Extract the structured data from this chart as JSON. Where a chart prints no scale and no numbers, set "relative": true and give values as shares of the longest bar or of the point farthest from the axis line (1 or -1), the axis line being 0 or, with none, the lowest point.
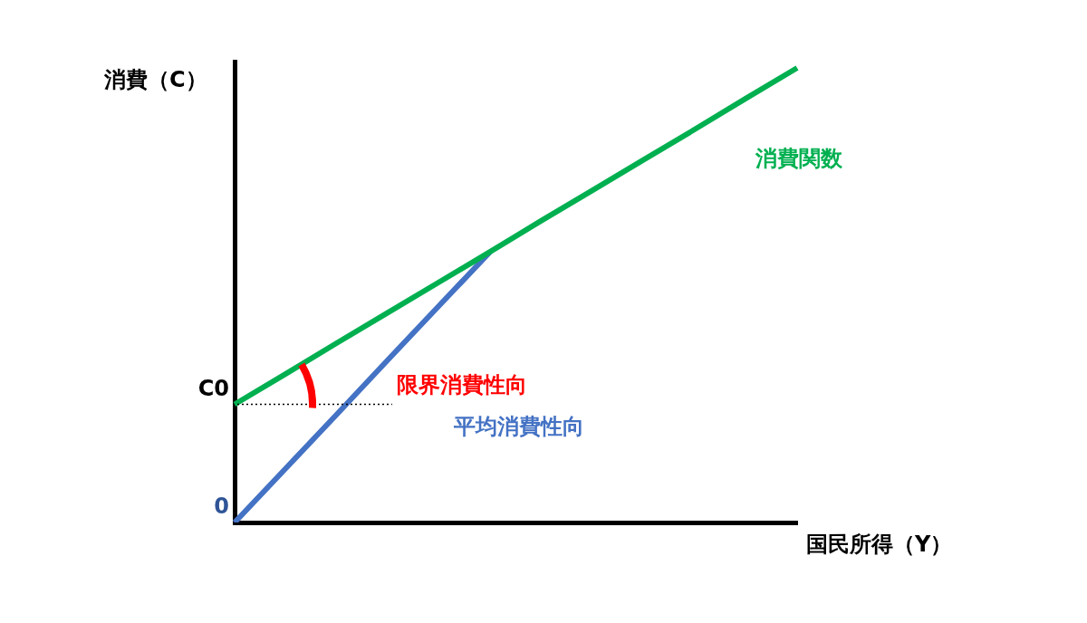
{
  "chart_data": {
    "type": "line",
    "relative": true,
    "xlabel": "国民所得（Y）",
    "ylabel": "消費（C）",
    "categories": [
      null,
      null,
      null,
      null,
      null,
      null,
      null,
      null,
      null,
      null,
      null,
      null
    ],
    "series": [
      {
        "name": "消費関数",
        "color": "#00b050",
        "values": [
          0.26,
          0.327,
          0.395,
          0.462,
          0.529,
          0.596,
          0.664,
          0.731,
          0.798,
          0.865,
          0.933,
          1
        ]
      },
      {
        "name": "平均消費性向",
        "color": "#4472c4",
        "values": [
          0,
          0.119,
          0.238,
          0.358,
          0.477,
          0.596,
          null,
          null,
          null,
          null,
          null,
          null
        ]
      }
    ],
    "ref_lines": [
      {
        "axis": "y",
        "value": 0.26,
        "label": "C0",
        "line_style": "dotted",
        "color": "#000000"
      }
    ],
    "annotations": [
      "0",
      "限界消費性向"
    ],
    "marker": "none"
  }
}
